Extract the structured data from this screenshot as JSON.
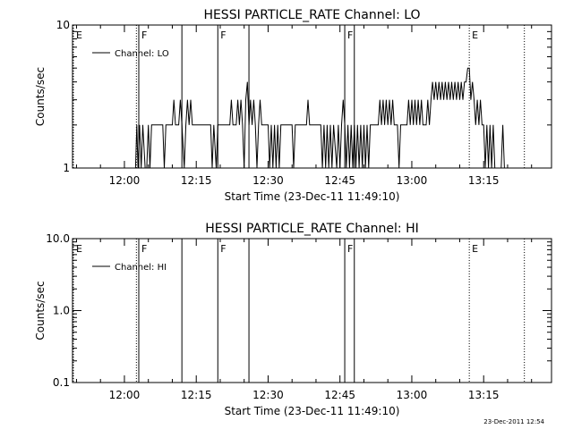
{
  "footer_timestamp": "23-Dec-2011 12:54",
  "chart_data": [
    {
      "type": "line",
      "title": "HESSI PARTICLE_RATE Channel: LO",
      "xlabel": "Start Time (23-Dec-11 11:49:10)",
      "ylabel": "Counts/sec",
      "yscale": "log",
      "ylim": [
        1,
        10
      ],
      "yticks": [
        "1",
        "10"
      ],
      "xlim": [
        "11:49:10",
        "13:29:10"
      ],
      "xticks": [
        "12:00",
        "12:15",
        "12:30",
        "12:45",
        "13:00",
        "13:15"
      ],
      "legend": {
        "position": "top-left",
        "entries": [
          "Channel: LO"
        ]
      },
      "grid": false,
      "markers": [
        {
          "time": "11:49:10",
          "label": "E",
          "style": "dotted"
        },
        {
          "time": "12:02:30",
          "label": "",
          "style": "dotted"
        },
        {
          "time": "12:03:00",
          "label": "F",
          "style": "solid"
        },
        {
          "time": "12:12:00",
          "label": "",
          "style": "solid"
        },
        {
          "time": "12:19:30",
          "label": "F",
          "style": "solid"
        },
        {
          "time": "12:26:00",
          "label": "",
          "style": "solid"
        },
        {
          "time": "12:46:00",
          "label": "F",
          "style": "solid"
        },
        {
          "time": "12:48:00",
          "label": "",
          "style": "solid"
        },
        {
          "time": "13:12:00",
          "label": "E",
          "style": "dotted"
        },
        {
          "time": "13:23:30",
          "label": "",
          "style": "dotted"
        }
      ],
      "series": [
        {
          "name": "Channel: LO",
          "points": [
            [
              "12:02:20",
              1
            ],
            [
              "12:02:35",
              2
            ],
            [
              "12:02:50",
              1
            ],
            [
              "12:03:10",
              2
            ],
            [
              "12:03:30",
              1
            ],
            [
              "12:03:50",
              2
            ],
            [
              "12:04:20",
              1
            ],
            [
              "12:04:40",
              1
            ],
            [
              "12:05:00",
              2
            ],
            [
              "12:05:20",
              1
            ],
            [
              "12:05:40",
              2
            ],
            [
              "12:08:00",
              2
            ],
            [
              "12:08:20",
              1
            ],
            [
              "12:08:40",
              2
            ],
            [
              "12:10:00",
              2
            ],
            [
              "12:10:20",
              3
            ],
            [
              "12:10:40",
              2
            ],
            [
              "12:11:20",
              2
            ],
            [
              "12:11:40",
              3
            ],
            [
              "12:12:00",
              2
            ],
            [
              "12:12:30",
              1
            ],
            [
              "12:12:50",
              2
            ],
            [
              "12:13:10",
              3
            ],
            [
              "12:13:30",
              2
            ],
            [
              "12:13:50",
              3
            ],
            [
              "12:14:10",
              2
            ],
            [
              "12:18:00",
              2
            ],
            [
              "12:18:20",
              1
            ],
            [
              "12:18:40",
              2
            ],
            [
              "12:19:10",
              1
            ],
            [
              "12:19:30",
              2
            ],
            [
              "12:22:00",
              2
            ],
            [
              "12:22:20",
              3
            ],
            [
              "12:22:40",
              2
            ],
            [
              "12:23:20",
              2
            ],
            [
              "12:23:40",
              3
            ],
            [
              "12:24:00",
              2
            ],
            [
              "12:24:20",
              3
            ],
            [
              "12:24:40",
              2
            ],
            [
              "12:25:00",
              1
            ],
            [
              "12:25:20",
              3
            ],
            [
              "12:25:40",
              4
            ],
            [
              "12:26:00",
              2
            ],
            [
              "12:26:20",
              3
            ],
            [
              "12:26:40",
              2
            ],
            [
              "12:27:00",
              3
            ],
            [
              "12:27:20",
              2
            ],
            [
              "12:27:40",
              1
            ],
            [
              "12:28:00",
              2
            ],
            [
              "12:28:20",
              3
            ],
            [
              "12:28:40",
              2
            ],
            [
              "12:30:00",
              2
            ],
            [
              "12:30:20",
              1
            ],
            [
              "12:30:40",
              2
            ],
            [
              "12:31:00",
              1
            ],
            [
              "12:31:20",
              2
            ],
            [
              "12:31:40",
              1
            ],
            [
              "12:32:00",
              2
            ],
            [
              "12:32:20",
              1
            ],
            [
              "12:32:40",
              2
            ],
            [
              "12:35:00",
              2
            ],
            [
              "12:35:20",
              1
            ],
            [
              "12:35:40",
              2
            ],
            [
              "12:38:00",
              2
            ],
            [
              "12:38:20",
              3
            ],
            [
              "12:38:40",
              2
            ],
            [
              "12:41:00",
              2
            ],
            [
              "12:41:20",
              1
            ],
            [
              "12:41:40",
              2
            ],
            [
              "12:42:00",
              1
            ],
            [
              "12:42:20",
              2
            ],
            [
              "12:42:40",
              1
            ],
            [
              "12:43:00",
              2
            ],
            [
              "12:43:20",
              1
            ],
            [
              "12:43:40",
              2
            ],
            [
              "12:44:20",
              1
            ],
            [
              "12:44:40",
              2
            ],
            [
              "12:45:00",
              1
            ],
            [
              "12:45:20",
              2
            ],
            [
              "12:45:40",
              3
            ],
            [
              "12:46:00",
              2
            ],
            [
              "12:46:20",
              1
            ],
            [
              "12:46:40",
              2
            ],
            [
              "12:47:00",
              1
            ],
            [
              "12:47:20",
              2
            ],
            [
              "12:47:40",
              1
            ],
            [
              "12:48:00",
              2
            ],
            [
              "12:48:20",
              1
            ],
            [
              "12:48:40",
              2
            ],
            [
              "12:49:00",
              1
            ],
            [
              "12:49:20",
              2
            ],
            [
              "12:49:40",
              1
            ],
            [
              "12:50:00",
              2
            ],
            [
              "12:50:20",
              1
            ],
            [
              "12:50:40",
              2
            ],
            [
              "12:51:00",
              1
            ],
            [
              "12:51:20",
              2
            ],
            [
              "12:53:00",
              2
            ],
            [
              "12:53:20",
              3
            ],
            [
              "12:53:40",
              2
            ],
            [
              "12:54:00",
              3
            ],
            [
              "12:54:20",
              2
            ],
            [
              "12:54:40",
              3
            ],
            [
              "12:55:00",
              2
            ],
            [
              "12:55:20",
              3
            ],
            [
              "12:55:40",
              2
            ],
            [
              "12:56:00",
              3
            ],
            [
              "12:56:20",
              2
            ],
            [
              "12:57:00",
              2
            ],
            [
              "12:57:20",
              1
            ],
            [
              "12:57:40",
              2
            ],
            [
              "12:59:00",
              2
            ],
            [
              "12:59:20",
              3
            ],
            [
              "12:59:40",
              2
            ],
            [
              "13:00:00",
              3
            ],
            [
              "13:00:20",
              2
            ],
            [
              "13:00:40",
              3
            ],
            [
              "13:01:00",
              2
            ],
            [
              "13:01:20",
              3
            ],
            [
              "13:01:40",
              2
            ],
            [
              "13:02:00",
              3
            ],
            [
              "13:02:20",
              2
            ],
            [
              "13:03:00",
              2
            ],
            [
              "13:03:20",
              3
            ],
            [
              "13:03:40",
              2
            ],
            [
              "13:04:00",
              3
            ],
            [
              "13:04:20",
              4
            ],
            [
              "13:04:40",
              3
            ],
            [
              "13:05:00",
              4
            ],
            [
              "13:05:20",
              3
            ],
            [
              "13:05:40",
              4
            ],
            [
              "13:06:00",
              3
            ],
            [
              "13:06:20",
              4
            ],
            [
              "13:06:40",
              3
            ],
            [
              "13:07:00",
              4
            ],
            [
              "13:07:20",
              3
            ],
            [
              "13:07:40",
              4
            ],
            [
              "13:08:00",
              3
            ],
            [
              "13:08:20",
              4
            ],
            [
              "13:08:40",
              3
            ],
            [
              "13:09:00",
              4
            ],
            [
              "13:09:20",
              3
            ],
            [
              "13:09:40",
              4
            ],
            [
              "13:10:00",
              3
            ],
            [
              "13:10:20",
              4
            ],
            [
              "13:10:40",
              3
            ],
            [
              "13:11:00",
              4
            ],
            [
              "13:11:20",
              4
            ],
            [
              "13:11:40",
              5
            ],
            [
              "13:12:00",
              5
            ],
            [
              "13:12:20",
              3
            ],
            [
              "13:12:40",
              4
            ],
            [
              "13:13:00",
              3
            ],
            [
              "13:13:20",
              2
            ],
            [
              "13:13:40",
              3
            ],
            [
              "13:14:00",
              2
            ],
            [
              "13:14:20",
              3
            ],
            [
              "13:14:40",
              2
            ],
            [
              "13:15:00",
              2
            ],
            [
              "13:15:20",
              1
            ],
            [
              "13:15:40",
              2
            ],
            [
              "13:16:00",
              1
            ],
            [
              "13:16:20",
              2
            ],
            [
              "13:16:40",
              1
            ],
            [
              "13:17:00",
              2
            ],
            [
              "13:17:20",
              1
            ],
            [
              "13:18:40",
              1
            ],
            [
              "13:19:00",
              2
            ],
            [
              "13:19:20",
              1
            ]
          ]
        }
      ]
    },
    {
      "type": "line",
      "title": "HESSI PARTICLE_RATE Channel: HI",
      "xlabel": "Start Time (23-Dec-11 11:49:10)",
      "ylabel": "Counts/sec",
      "yscale": "log",
      "ylim": [
        0.1,
        10
      ],
      "yticks": [
        "0.1",
        "1.0",
        "10.0"
      ],
      "xlim": [
        "11:49:10",
        "13:29:10"
      ],
      "xticks": [
        "12:00",
        "12:15",
        "12:30",
        "12:45",
        "13:00",
        "13:15"
      ],
      "legend": {
        "position": "top-left",
        "entries": [
          "Channel: HI"
        ]
      },
      "grid": false,
      "markers": [
        {
          "time": "11:49:10",
          "label": "E",
          "style": "dotted"
        },
        {
          "time": "12:02:30",
          "label": "",
          "style": "dotted"
        },
        {
          "time": "12:03:00",
          "label": "F",
          "style": "solid"
        },
        {
          "time": "12:12:00",
          "label": "",
          "style": "solid"
        },
        {
          "time": "12:19:30",
          "label": "F",
          "style": "solid"
        },
        {
          "time": "12:26:00",
          "label": "",
          "style": "solid"
        },
        {
          "time": "12:46:00",
          "label": "F",
          "style": "solid"
        },
        {
          "time": "12:48:00",
          "label": "",
          "style": "solid"
        },
        {
          "time": "13:12:00",
          "label": "E",
          "style": "dotted"
        },
        {
          "time": "13:23:30",
          "label": "",
          "style": "dotted"
        }
      ],
      "series": [
        {
          "name": "Channel: HI",
          "points": []
        }
      ]
    }
  ]
}
